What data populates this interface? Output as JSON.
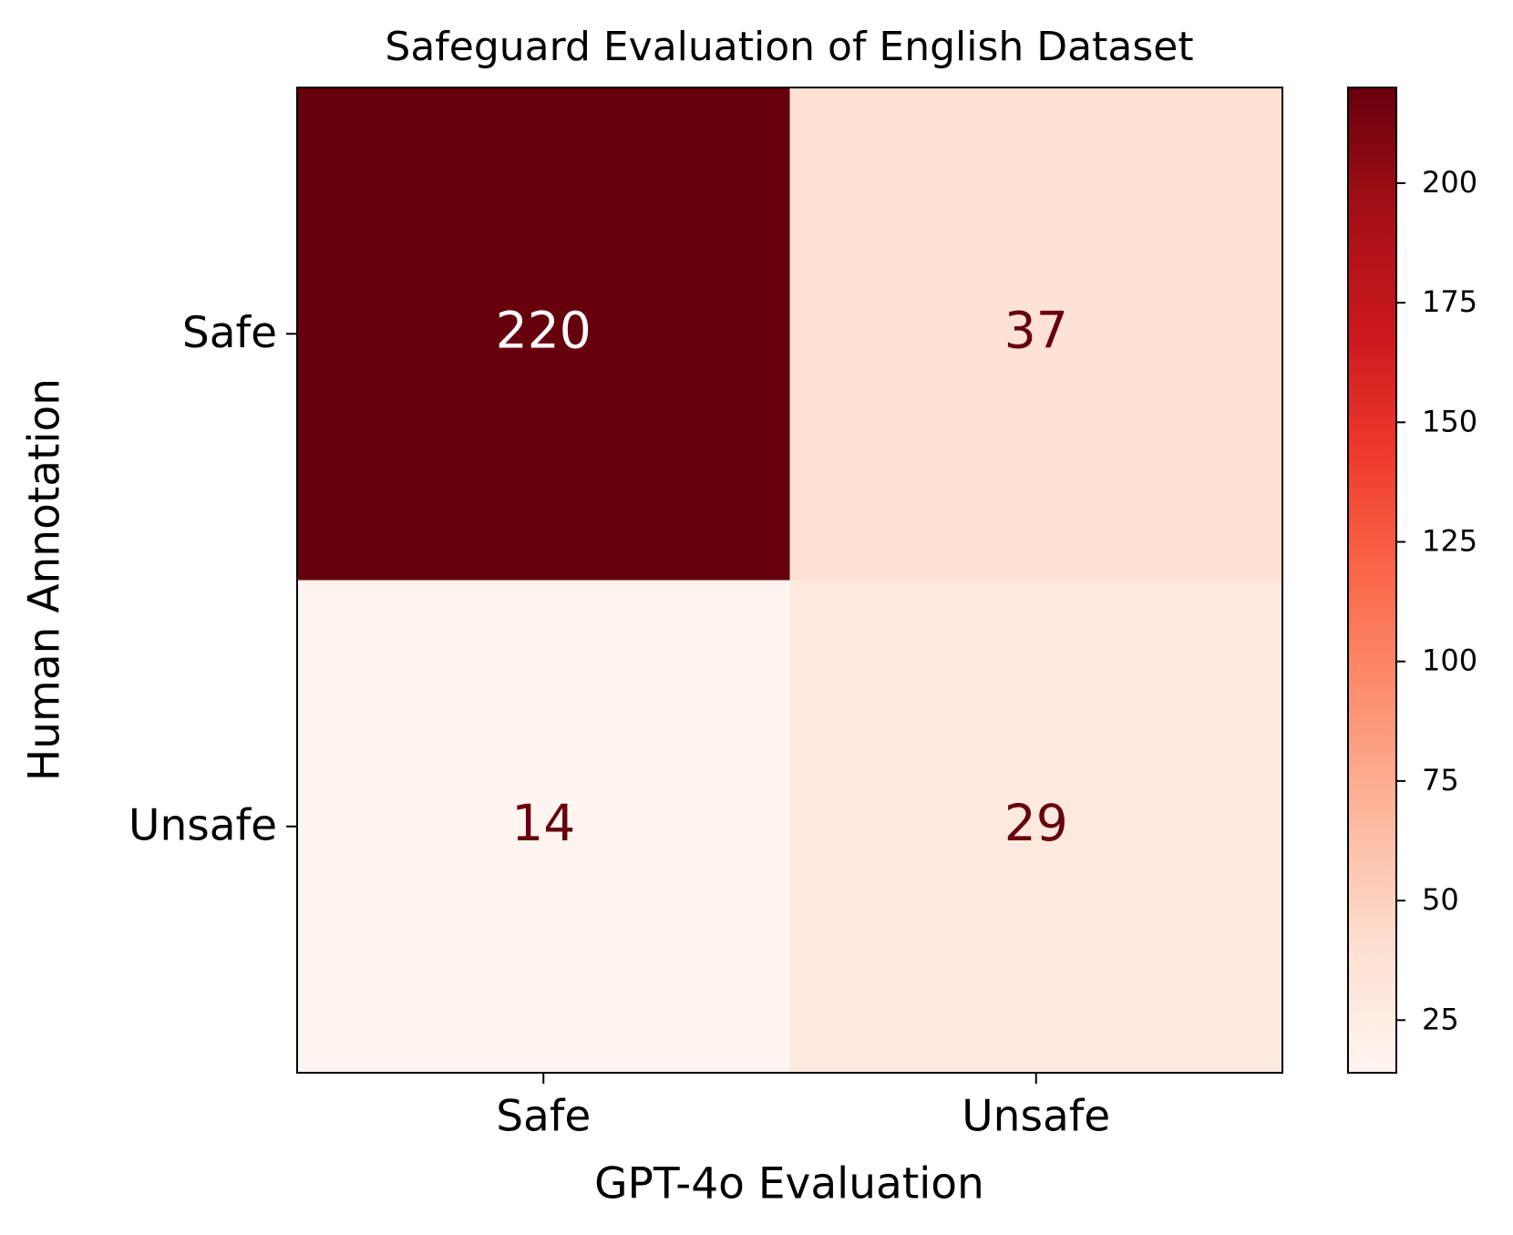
{
  "chart_data": {
    "type": "heatmap",
    "title": "Safeguard Evaluation of English Dataset",
    "x_label": "GPT-4o Evaluation",
    "y_label": "Human Annotation",
    "x_categories": [
      "Safe",
      "Unsafe"
    ],
    "y_categories": [
      "Safe",
      "Unsafe"
    ],
    "values": [
      [
        220,
        37
      ],
      [
        14,
        29
      ]
    ],
    "colormap": "Reds",
    "colorscale": [
      "#fff5f0",
      "#fee0d2",
      "#fcbba1",
      "#fc9272",
      "#fb6a4a",
      "#ef3b2c",
      "#cb181d",
      "#a50f15",
      "#67000d"
    ],
    "zlim": [
      14,
      220
    ],
    "zticks": [
      25,
      50,
      75,
      100,
      125,
      150,
      175,
      200
    ]
  }
}
